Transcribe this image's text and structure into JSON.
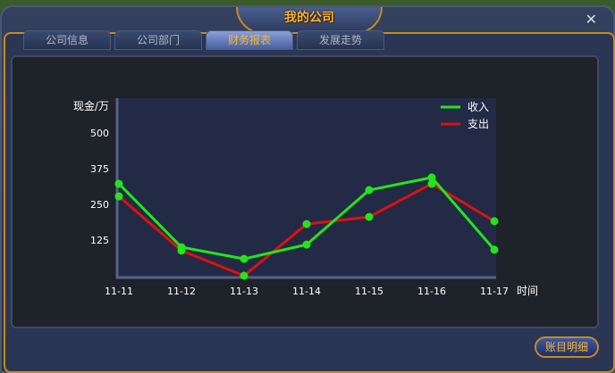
{
  "window": {
    "title": "我的公司",
    "close_icon": "close-x-icon"
  },
  "tabs": [
    {
      "label": "公司信息"
    },
    {
      "label": "公司部门"
    },
    {
      "label": "财务报表",
      "active": true
    },
    {
      "label": "发展走势"
    }
  ],
  "footer": {
    "detail_button": "账目明细"
  },
  "chart_data": {
    "type": "line",
    "ylabel": "现金/万",
    "xlabel": "时间",
    "categories": [
      "11-11",
      "11-12",
      "11-13",
      "11-14",
      "11-15",
      "11-16",
      "11-17"
    ],
    "yticks": [
      125,
      250,
      375,
      500
    ],
    "ylim": [
      0,
      625
    ],
    "legend_position": "top-right",
    "grid": false,
    "series": [
      {
        "name": "收入",
        "color": "#22e61a",
        "values": [
          322,
          100,
          59,
          109,
          300,
          344,
          91
        ]
      },
      {
        "name": "支出",
        "color": "#e01010",
        "values": [
          278,
          88,
          0,
          181,
          206,
          322,
          191
        ]
      }
    ],
    "marker_color": "#22e61a"
  }
}
